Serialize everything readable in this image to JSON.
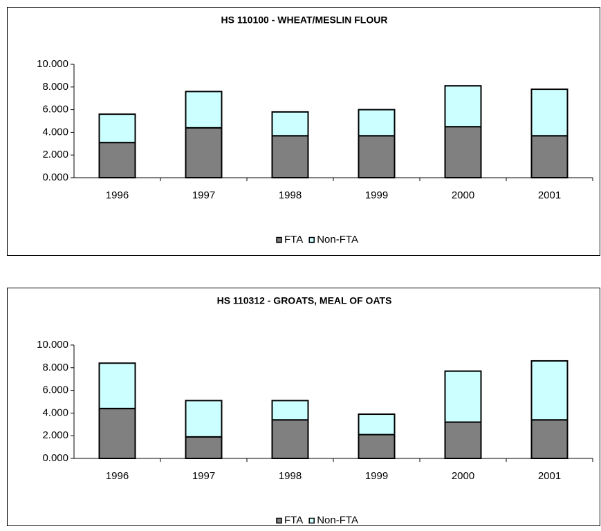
{
  "chart_data": [
    {
      "type": "stacked-bar",
      "title": "HS 110100 - WHEAT/MESLIN FLOUR",
      "categories": [
        "1996",
        "1997",
        "1998",
        "1999",
        "2000",
        "2001"
      ],
      "series": [
        {
          "name": "FTA",
          "color": "#808080",
          "values": [
            3.1,
            4.4,
            3.7,
            3.7,
            4.5,
            3.7
          ]
        },
        {
          "name": "Non-FTA",
          "color": "#ccffff",
          "values": [
            2.5,
            3.2,
            2.1,
            2.3,
            3.6,
            4.1
          ]
        }
      ],
      "ylim": [
        0,
        10
      ],
      "yticks": [
        {
          "value": 0,
          "label": "0.000"
        },
        {
          "value": 2,
          "label": "2.000"
        },
        {
          "value": 4,
          "label": "4.000"
        },
        {
          "value": 6,
          "label": "6.000"
        },
        {
          "value": 8,
          "label": "8.000"
        },
        {
          "value": 10,
          "label": "10.000"
        }
      ],
      "legend": "bottom"
    },
    {
      "type": "stacked-bar",
      "title": "HS 110312 - GROATS, MEAL OF OATS",
      "categories": [
        "1996",
        "1997",
        "1998",
        "1999",
        "2000",
        "2001"
      ],
      "series": [
        {
          "name": "FTA",
          "color": "#808080",
          "values": [
            4.4,
            1.9,
            3.4,
            2.1,
            3.2,
            3.4
          ]
        },
        {
          "name": "Non-FTA",
          "color": "#ccffff",
          "values": [
            4.0,
            3.2,
            1.7,
            1.8,
            4.5,
            5.2
          ]
        }
      ],
      "ylim": [
        0,
        10
      ],
      "yticks": [
        {
          "value": 0,
          "label": "0.000"
        },
        {
          "value": 2,
          "label": "2.000"
        },
        {
          "value": 4,
          "label": "4.000"
        },
        {
          "value": 6,
          "label": "6.000"
        },
        {
          "value": 8,
          "label": "8.000"
        },
        {
          "value": 10,
          "label": "10.000"
        }
      ],
      "legend": "bottom"
    }
  ]
}
